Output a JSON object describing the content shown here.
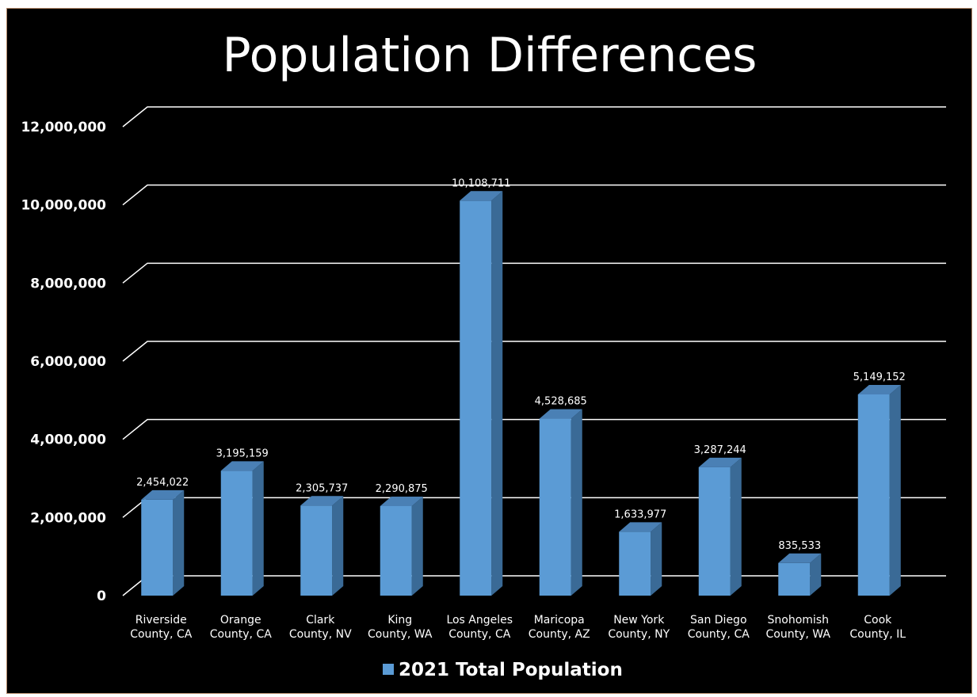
{
  "chart_data": {
    "type": "bar",
    "title": "Population Differences",
    "categories": [
      [
        "Riverside",
        "County, CA"
      ],
      [
        "Orange",
        "County, CA"
      ],
      [
        "Clark",
        "County, NV"
      ],
      [
        "King",
        "County, WA"
      ],
      [
        "Los Angeles",
        "County, CA"
      ],
      [
        "Maricopa",
        "County, AZ"
      ],
      [
        "New York",
        "County, NY"
      ],
      [
        "San Diego",
        "County, CA"
      ],
      [
        "Snohomish",
        "County, WA"
      ],
      [
        "Cook",
        "County, IL"
      ]
    ],
    "series": [
      {
        "name": "2021 Total Population",
        "values": [
          2454022,
          3195159,
          2305737,
          2290875,
          10108711,
          4528685,
          1633977,
          3287244,
          835533,
          5149152
        ],
        "labels": [
          "2,454,022",
          "3,195,159",
          "2,305,737",
          "2,290,875",
          "10,108,711",
          "4,528,685",
          "1,633,977",
          "3,287,244",
          "835,533",
          "5,149,152"
        ],
        "color": "#5b9bd5"
      }
    ],
    "ylim": [
      0,
      12000000
    ],
    "yticks": [
      0,
      2000000,
      4000000,
      6000000,
      8000000,
      10000000,
      12000000
    ],
    "ytick_labels": [
      "0",
      "2,000,000",
      "4,000,000",
      "6,000,000",
      "8,000,000",
      "10,000,000",
      "12,000,000"
    ],
    "xlabel": "",
    "ylabel": "",
    "grid": true,
    "legend_position": "bottom",
    "style": "3d-column",
    "colors": {
      "background": "#000000",
      "text": "#ffffff",
      "gridline": "#ffffff",
      "bar_front": "#5b9bd5",
      "bar_side": "#3a6a96",
      "bar_top": "#4a80b5"
    }
  }
}
